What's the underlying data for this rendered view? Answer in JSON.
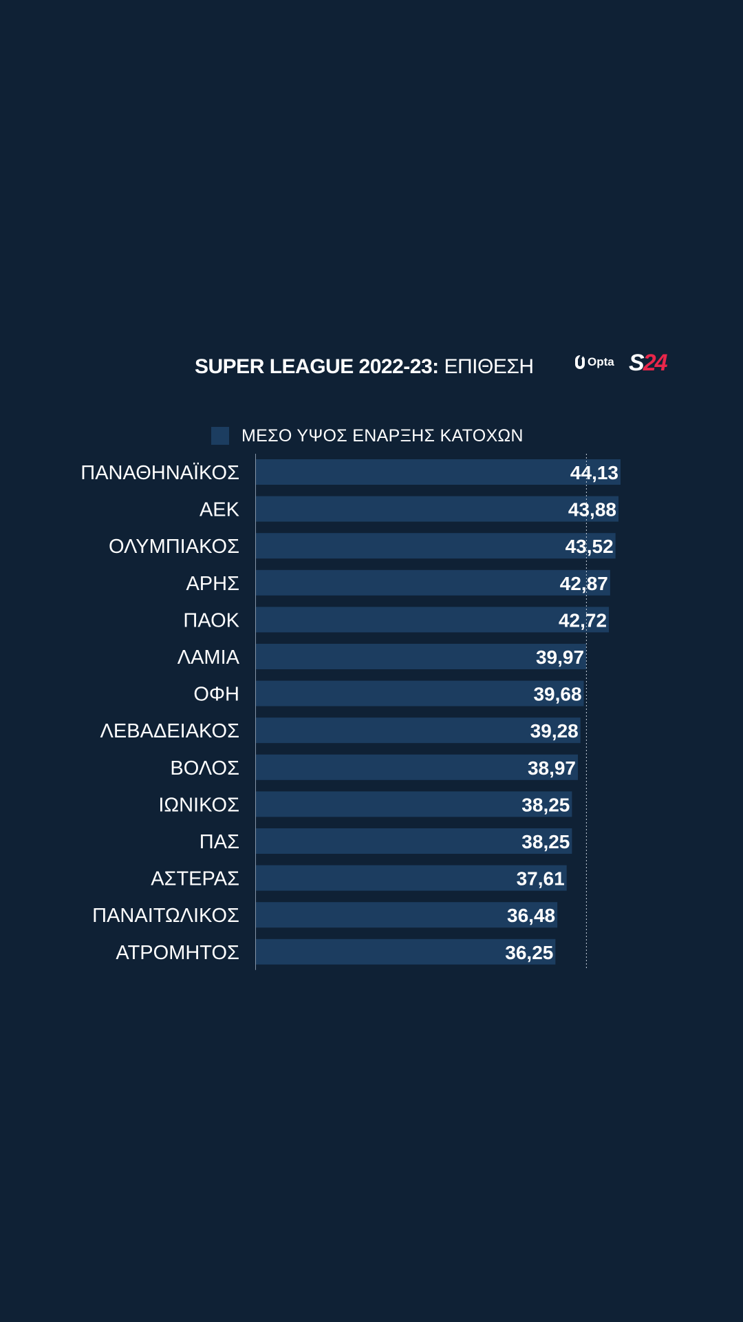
{
  "header": {
    "title_bold": "SUPER LEAGUE 2022-23:",
    "title_light": " ΕΠΙΘΕΣΗ",
    "opta_text": "Opta",
    "s24_letter": "S",
    "s24_number": "24"
  },
  "colors": {
    "background": "#0f2135",
    "bar": "#1c3d60",
    "text": "#ffffff",
    "brand_accent": "#e8264a"
  },
  "chart_data": {
    "type": "bar",
    "orientation": "horizontal",
    "title": "SUPER LEAGUE 2022-23: ΕΠΙΘΕΣΗ",
    "legend": "top",
    "series": [
      {
        "name": "ΜΕΣΟ ΥΨΟΣ ΕΝΑΡΞΗΣ ΚΑΤΟΧΩΝ",
        "color": "#1c3d60",
        "values": [
          44.13,
          43.88,
          43.52,
          42.87,
          42.72,
          39.97,
          39.68,
          39.28,
          38.97,
          38.25,
          38.25,
          37.61,
          36.48,
          36.25
        ]
      }
    ],
    "categories": [
      "ΠΑΝΑΘΗΝΑΪΚΟΣ",
      "ΑΕΚ",
      "ΟΛΥΜΠΙΑΚΟΣ",
      "ΑΡΗΣ",
      "ΠΑΟΚ",
      "ΛΑΜΙΑ",
      "ΟΦΗ",
      "ΛΕΒΑΔΕΙΑΚΟΣ",
      "ΒΟΛΟΣ",
      "ΙΩΝΙΚΟΣ",
      "ΠΑΣ",
      "ΑΣΤΕΡΑΣ",
      "ΠΑΝΑΙΤΩΛΙΚΟΣ",
      "ΑΤΡΟΜΗΤΟΣ"
    ],
    "value_labels": [
      "44,13",
      "43,88",
      "43,52",
      "42,87",
      "42,72",
      "39,97",
      "39,68",
      "39,28",
      "38,97",
      "38,25",
      "38,25",
      "37,61",
      "36,48",
      "36,25"
    ],
    "reference_line": {
      "value": 40.0,
      "style": "dotted"
    },
    "xlim": [
      0,
      44.13
    ],
    "grid": false
  }
}
